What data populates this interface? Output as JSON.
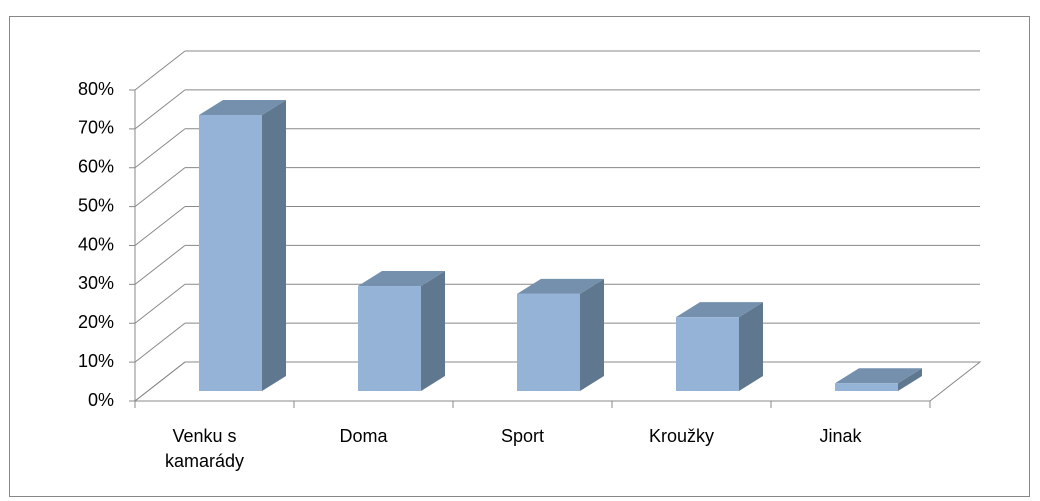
{
  "chart_data": {
    "type": "bar3d",
    "categories": [
      "Venku s kamarády",
      "Doma",
      "Sport",
      "Kroužky",
      "Jinak"
    ],
    "values": [
      71,
      27,
      25,
      19,
      2
    ],
    "color": "#95b3d7",
    "ylim": [
      0,
      80
    ],
    "yticks": [
      {
        "value": 0,
        "label": "0%"
      },
      {
        "value": 10,
        "label": "10%"
      },
      {
        "value": 20,
        "label": "20%"
      },
      {
        "value": 30,
        "label": "30%"
      },
      {
        "value": 40,
        "label": "40%"
      },
      {
        "value": 50,
        "label": "50%"
      },
      {
        "value": 60,
        "label": "60%"
      },
      {
        "value": 70,
        "label": "70%"
      },
      {
        "value": 80,
        "label": "80%"
      }
    ],
    "grid": true
  }
}
